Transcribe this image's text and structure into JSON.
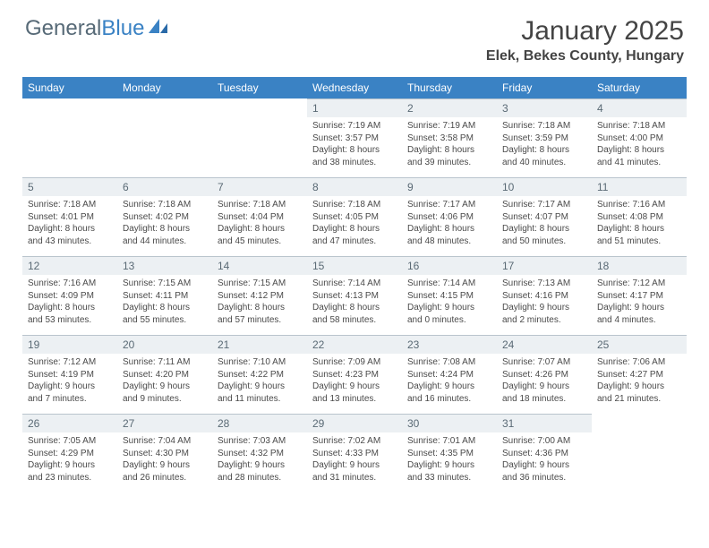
{
  "brand": {
    "part1": "General",
    "part2": "Blue"
  },
  "title": "January 2025",
  "location": "Elek, Bekes County, Hungary",
  "colors": {
    "header_bg": "#3a82c4",
    "header_text": "#ffffff",
    "daynum_bg": "#ecf0f3",
    "daynum_text": "#5a6a75",
    "border": "#b9c4cd",
    "body_text": "#4a4a4a",
    "logo_gray": "#576a77",
    "logo_blue": "#3a82c4"
  },
  "day_headers": [
    "Sunday",
    "Monday",
    "Tuesday",
    "Wednesday",
    "Thursday",
    "Friday",
    "Saturday"
  ],
  "weeks": [
    [
      null,
      null,
      null,
      {
        "n": "1",
        "sunrise": "7:19 AM",
        "sunset": "3:57 PM",
        "dh": "8",
        "dm": "38"
      },
      {
        "n": "2",
        "sunrise": "7:19 AM",
        "sunset": "3:58 PM",
        "dh": "8",
        "dm": "39"
      },
      {
        "n": "3",
        "sunrise": "7:18 AM",
        "sunset": "3:59 PM",
        "dh": "8",
        "dm": "40"
      },
      {
        "n": "4",
        "sunrise": "7:18 AM",
        "sunset": "4:00 PM",
        "dh": "8",
        "dm": "41"
      }
    ],
    [
      {
        "n": "5",
        "sunrise": "7:18 AM",
        "sunset": "4:01 PM",
        "dh": "8",
        "dm": "43"
      },
      {
        "n": "6",
        "sunrise": "7:18 AM",
        "sunset": "4:02 PM",
        "dh": "8",
        "dm": "44"
      },
      {
        "n": "7",
        "sunrise": "7:18 AM",
        "sunset": "4:04 PM",
        "dh": "8",
        "dm": "45"
      },
      {
        "n": "8",
        "sunrise": "7:18 AM",
        "sunset": "4:05 PM",
        "dh": "8",
        "dm": "47"
      },
      {
        "n": "9",
        "sunrise": "7:17 AM",
        "sunset": "4:06 PM",
        "dh": "8",
        "dm": "48"
      },
      {
        "n": "10",
        "sunrise": "7:17 AM",
        "sunset": "4:07 PM",
        "dh": "8",
        "dm": "50"
      },
      {
        "n": "11",
        "sunrise": "7:16 AM",
        "sunset": "4:08 PM",
        "dh": "8",
        "dm": "51"
      }
    ],
    [
      {
        "n": "12",
        "sunrise": "7:16 AM",
        "sunset": "4:09 PM",
        "dh": "8",
        "dm": "53"
      },
      {
        "n": "13",
        "sunrise": "7:15 AM",
        "sunset": "4:11 PM",
        "dh": "8",
        "dm": "55"
      },
      {
        "n": "14",
        "sunrise": "7:15 AM",
        "sunset": "4:12 PM",
        "dh": "8",
        "dm": "57"
      },
      {
        "n": "15",
        "sunrise": "7:14 AM",
        "sunset": "4:13 PM",
        "dh": "8",
        "dm": "58"
      },
      {
        "n": "16",
        "sunrise": "7:14 AM",
        "sunset": "4:15 PM",
        "dh": "9",
        "dm": "0"
      },
      {
        "n": "17",
        "sunrise": "7:13 AM",
        "sunset": "4:16 PM",
        "dh": "9",
        "dm": "2"
      },
      {
        "n": "18",
        "sunrise": "7:12 AM",
        "sunset": "4:17 PM",
        "dh": "9",
        "dm": "4"
      }
    ],
    [
      {
        "n": "19",
        "sunrise": "7:12 AM",
        "sunset": "4:19 PM",
        "dh": "9",
        "dm": "7"
      },
      {
        "n": "20",
        "sunrise": "7:11 AM",
        "sunset": "4:20 PM",
        "dh": "9",
        "dm": "9"
      },
      {
        "n": "21",
        "sunrise": "7:10 AM",
        "sunset": "4:22 PM",
        "dh": "9",
        "dm": "11"
      },
      {
        "n": "22",
        "sunrise": "7:09 AM",
        "sunset": "4:23 PM",
        "dh": "9",
        "dm": "13"
      },
      {
        "n": "23",
        "sunrise": "7:08 AM",
        "sunset": "4:24 PM",
        "dh": "9",
        "dm": "16"
      },
      {
        "n": "24",
        "sunrise": "7:07 AM",
        "sunset": "4:26 PM",
        "dh": "9",
        "dm": "18"
      },
      {
        "n": "25",
        "sunrise": "7:06 AM",
        "sunset": "4:27 PM",
        "dh": "9",
        "dm": "21"
      }
    ],
    [
      {
        "n": "26",
        "sunrise": "7:05 AM",
        "sunset": "4:29 PM",
        "dh": "9",
        "dm": "23"
      },
      {
        "n": "27",
        "sunrise": "7:04 AM",
        "sunset": "4:30 PM",
        "dh": "9",
        "dm": "26"
      },
      {
        "n": "28",
        "sunrise": "7:03 AM",
        "sunset": "4:32 PM",
        "dh": "9",
        "dm": "28"
      },
      {
        "n": "29",
        "sunrise": "7:02 AM",
        "sunset": "4:33 PM",
        "dh": "9",
        "dm": "31"
      },
      {
        "n": "30",
        "sunrise": "7:01 AM",
        "sunset": "4:35 PM",
        "dh": "9",
        "dm": "33"
      },
      {
        "n": "31",
        "sunrise": "7:00 AM",
        "sunset": "4:36 PM",
        "dh": "9",
        "dm": "36"
      },
      null
    ]
  ],
  "labels": {
    "sunrise": "Sunrise:",
    "sunset": "Sunset:",
    "daylight_prefix": "Daylight:",
    "hours_word": "hours",
    "and_word": "and",
    "minutes_word": "minutes."
  }
}
